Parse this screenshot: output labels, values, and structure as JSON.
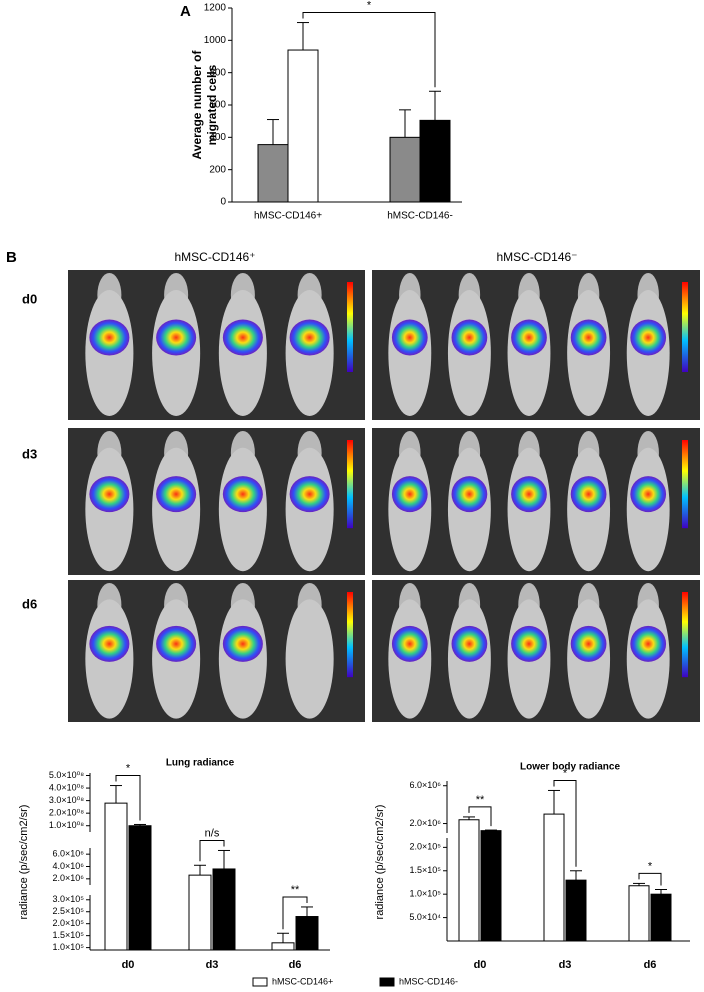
{
  "figure": {
    "panel_a": "A",
    "panel_b": "B",
    "columns": [
      "hMSC-CD146⁺",
      "hMSC-CD146⁻"
    ],
    "rows": [
      "d0",
      "d3",
      "d6"
    ]
  },
  "chart_data": [
    {
      "type": "bar",
      "ylabel": [
        "Average number of",
        "migrated cells"
      ],
      "categories": [
        "hMSC-CD146+",
        "hMSC-CD146-"
      ],
      "series": [
        {
          "color": "#8a8a8a",
          "values": [
            355,
            400
          ],
          "errors": [
            155,
            170
          ]
        },
        {
          "colors": [
            "#ffffff",
            "#000000"
          ],
          "values": [
            940,
            505
          ],
          "errors": [
            170,
            180
          ]
        }
      ],
      "ylim": [
        0,
        1200
      ],
      "yticks": [
        0,
        200,
        400,
        600,
        800,
        1000,
        1200
      ],
      "annotations": [
        "*"
      ]
    },
    {
      "type": "bar",
      "title": "Lung radiance",
      "ylabel": "radiance (p/sec/cm2/sr)",
      "categories": [
        "d0",
        "d3",
        "d6"
      ],
      "series": [
        {
          "name": "hMSC-CD146+",
          "color": "#ffffff",
          "values": [
            280000000,
            2600000,
            120000
          ],
          "errors": [
            140000000,
            1600000,
            40000
          ]
        },
        {
          "name": "hMSC-CD146-",
          "color": "#000000",
          "values": [
            100000000,
            3600000,
            230000
          ],
          "errors": [
            10000000,
            3000000,
            40000
          ]
        }
      ],
      "segments": [
        {
          "ylim": [
            90000,
            320000
          ],
          "yticks": [
            {
              "value": 100000,
              "label": "1.0×10⁵"
            },
            {
              "value": 150000,
              "label": "1.5×10⁵"
            },
            {
              "value": 200000,
              "label": "2.0×10⁵"
            },
            {
              "value": 250000,
              "label": "2.5×10⁵"
            },
            {
              "value": 300000,
              "label": "3.0×10⁵"
            }
          ]
        },
        {
          "ylim": [
            1000000,
            7000000
          ],
          "yticks": [
            {
              "value": 2000000,
              "label": "2.0×10⁶"
            },
            {
              "value": 4000000,
              "label": "4.0×10⁶"
            },
            {
              "value": 6000000,
              "label": "6.0×10⁶"
            }
          ]
        },
        {
          "ylim": [
            50000000,
            520000000
          ],
          "yticks": [
            {
              "value": 100000000,
              "label": "1.0×10⁰⁸"
            },
            {
              "value": 200000000,
              "label": "2.0×10⁰⁸"
            },
            {
              "value": 300000000,
              "label": "3.0×10⁰⁸"
            },
            {
              "value": 400000000,
              "label": "4.0×10⁰⁸"
            },
            {
              "value": 500000000,
              "label": "5.0×10⁰⁸"
            }
          ]
        }
      ],
      "annotations": [
        "*",
        "n/s",
        "**"
      ]
    },
    {
      "type": "bar",
      "title": "Lower body radiance",
      "ylabel": "radiance (p/sec/cm2/sr)",
      "categories": [
        "d0",
        "d3",
        "d6"
      ],
      "series": [
        {
          "color": "#ffffff",
          "values": [
            2400000,
            3000000,
            118000
          ],
          "errors": [
            300000,
            2500000,
            5000
          ]
        },
        {
          "color": "#000000",
          "values": [
            1250000,
            130000,
            100000
          ],
          "errors": [
            60000,
            20000,
            10000
          ]
        }
      ],
      "segments": [
        {
          "ylim": [
            0,
            220000
          ],
          "yticks": [
            {
              "value": 50000,
              "label": "5.0×10⁴"
            },
            {
              "value": 100000,
              "label": "1.0×10⁵"
            },
            {
              "value": 150000,
              "label": "1.5×10⁵"
            },
            {
              "value": 200000,
              "label": "2.0×10⁵"
            }
          ]
        },
        {
          "ylim": [
            1000000,
            6500000
          ],
          "yticks": [
            {
              "value": 2000000,
              "label": "2.0×10⁶"
            },
            {
              "value": 6000000,
              "label": "6.0×10⁶"
            }
          ]
        }
      ],
      "annotations": [
        "**",
        "*",
        "*"
      ]
    }
  ]
}
